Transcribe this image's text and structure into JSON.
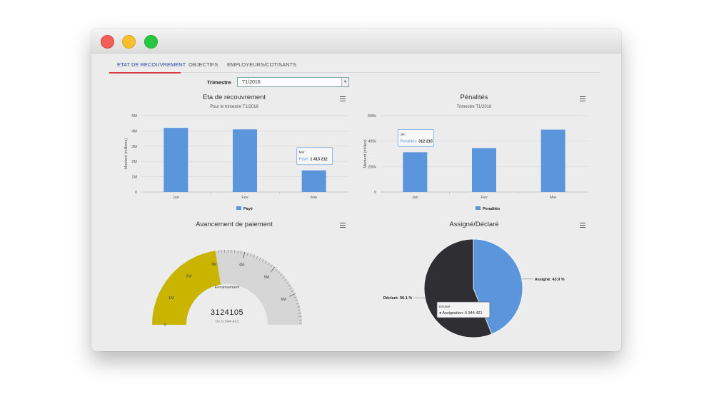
{
  "window": {
    "controls": [
      "close",
      "minimize",
      "maximize"
    ]
  },
  "tabs": [
    {
      "label": "ETAT DE RECOUVREMENT",
      "active": true
    },
    {
      "label": "OBJECTIFS",
      "active": false
    },
    {
      "label": "EMPLOYEURS/COTISANTS",
      "active": false
    }
  ],
  "filter": {
    "label": "Trimestre",
    "value": "T1/2016"
  },
  "colors": {
    "bar": "#5b96dc",
    "gauge_fill": "#c9b400",
    "gauge_track": "#d6d6d6",
    "pie_dark": "#2e2e33",
    "pie_blue": "#5b96dc",
    "tab_accent": "#d93a4a"
  },
  "chart_data": [
    {
      "type": "bar",
      "title": "Eta de recouvrement",
      "subtitle": "Pour le trimestre T1/2016",
      "ylabel": "Montant (millions)",
      "categories": [
        "Jan",
        "Fev",
        "Mar"
      ],
      "series": [
        {
          "name": "Payé",
          "values": [
            4200000,
            4100000,
            1415212
          ]
        }
      ],
      "ylim": [
        0,
        5000000
      ],
      "yticks": [
        "0",
        "1M",
        "2M",
        "3M",
        "4M",
        "5M"
      ],
      "tooltip": {
        "category": "Mar",
        "series": "Payé",
        "value": "1 415 212"
      },
      "grid": true,
      "legend": "bottom"
    },
    {
      "type": "bar",
      "title": "Pénalités",
      "subtitle": "Trimestre T1/2016",
      "ylabel": "Montant (millies)",
      "categories": [
        "Jan",
        "Fev",
        "Mar"
      ],
      "series": [
        {
          "name": "Penalités",
          "values": [
            312215,
            345000,
            490000
          ]
        }
      ],
      "ylim": [
        0,
        600000
      ],
      "yticks": [
        "0",
        "200k",
        "400k",
        "600k"
      ],
      "tooltip": {
        "category": "Jan",
        "series": "Penalités",
        "value": "312 215"
      },
      "grid": true,
      "legend": "bottom"
    },
    {
      "type": "gauge",
      "title": "Avancement de paiement",
      "label": "Encaissement",
      "value": 3124105,
      "value_text": "3124105",
      "max": 6944421,
      "max_text": "De 6 944 421",
      "tick_labels": [
        "0",
        "1M",
        "2M",
        "3M",
        "4M",
        "5M",
        "6M"
      ]
    },
    {
      "type": "pie",
      "title": "Assigné/Déclaré",
      "slices": [
        {
          "label": "Assigné",
          "value": 43.9,
          "label_text": "Assigné: 43.9 %"
        },
        {
          "label": "Déclaré",
          "value": 56.1,
          "label_text": "Déclaré: 56.1 %"
        }
      ],
      "tooltip": {
        "title": "Déclaré",
        "text": "● Assignation: 6 944 421"
      }
    }
  ]
}
